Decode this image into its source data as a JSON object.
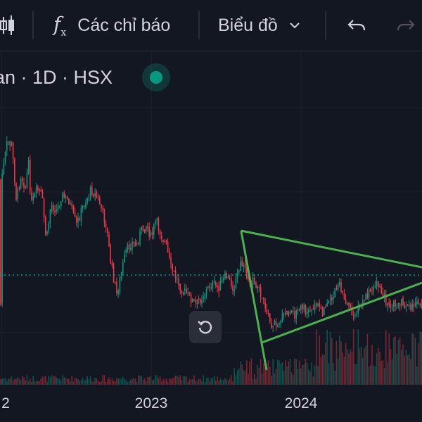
{
  "toolbar": {
    "indicators_label": "Các chỉ báo",
    "chart_type_label": "Biểu đồ",
    "fx_symbol": "f",
    "fx_sub": "x"
  },
  "legend": {
    "symbol_fragment": "an · 1D · HSX",
    "status_color": "#089981"
  },
  "icons": [
    "candles-icon",
    "fx-icon",
    "chevron-down-icon",
    "undo-icon",
    "redo-icon",
    "reset-icon"
  ],
  "colors": {
    "up": "#089981",
    "down": "#f23645",
    "trendline": "#4caf50",
    "background": "#131722",
    "price_line": "#089981"
  },
  "chart_data": {
    "type": "line",
    "x_ticks": [
      {
        "label": "2",
        "t": 0.0
      },
      {
        "label": "2023",
        "t": 1.0
      },
      {
        "label": "2024",
        "t": 2.0
      }
    ],
    "x_range": [
      0.0,
      2.7
    ],
    "y_range": [
      0,
      100
    ],
    "price_path": [
      [
        0.0,
        70
      ],
      [
        0.04,
        88
      ],
      [
        0.07,
        86
      ],
      [
        0.1,
        60
      ],
      [
        0.13,
        72
      ],
      [
        0.16,
        66
      ],
      [
        0.18,
        78
      ],
      [
        0.2,
        58
      ],
      [
        0.24,
        65
      ],
      [
        0.27,
        62
      ],
      [
        0.3,
        40
      ],
      [
        0.33,
        58
      ],
      [
        0.37,
        55
      ],
      [
        0.4,
        62
      ],
      [
        0.45,
        60
      ],
      [
        0.5,
        48
      ],
      [
        0.55,
        58
      ],
      [
        0.6,
        65
      ],
      [
        0.65,
        60
      ],
      [
        0.7,
        48
      ],
      [
        0.73,
        30
      ],
      [
        0.77,
        15
      ],
      [
        0.8,
        25
      ],
      [
        0.83,
        35
      ],
      [
        0.87,
        40
      ],
      [
        0.9,
        38
      ],
      [
        0.93,
        45
      ],
      [
        0.97,
        48
      ],
      [
        1.0,
        42
      ],
      [
        1.03,
        50
      ],
      [
        1.07,
        43
      ],
      [
        1.1,
        38
      ],
      [
        1.13,
        28
      ],
      [
        1.17,
        22
      ],
      [
        1.2,
        18
      ],
      [
        1.25,
        14
      ],
      [
        1.3,
        10
      ],
      [
        1.35,
        15
      ],
      [
        1.4,
        20
      ],
      [
        1.45,
        18
      ],
      [
        1.5,
        24
      ],
      [
        1.55,
        18
      ],
      [
        1.6,
        30
      ],
      [
        1.65,
        22
      ],
      [
        1.7,
        20
      ],
      [
        1.75,
        12
      ],
      [
        1.8,
        0
      ],
      [
        1.85,
        2
      ],
      [
        1.9,
        6
      ],
      [
        1.95,
        5
      ],
      [
        2.0,
        8
      ],
      [
        2.05,
        7
      ],
      [
        2.1,
        10
      ],
      [
        2.15,
        6
      ],
      [
        2.2,
        12
      ],
      [
        2.25,
        20
      ],
      [
        2.3,
        12
      ],
      [
        2.35,
        4
      ],
      [
        2.4,
        10
      ],
      [
        2.45,
        16
      ],
      [
        2.5,
        20
      ],
      [
        2.55,
        14
      ],
      [
        2.6,
        8
      ],
      [
        2.65,
        12
      ],
      [
        2.7,
        10
      ]
    ],
    "price_line_level": 14,
    "triangle": [
      [
        1.6,
        30
      ],
      [
        1.72,
        -14
      ],
      [
        2.7,
        11
      ]
    ],
    "triangle_top_end": [
      2.7,
      11
    ],
    "triangle_bottom_start": [
      1.75,
      -14
    ],
    "triangle_bottom_end": [
      2.7,
      10
    ],
    "apex_line": [
      [
        1.6,
        30
      ],
      [
        1.75,
        -26
      ]
    ]
  }
}
